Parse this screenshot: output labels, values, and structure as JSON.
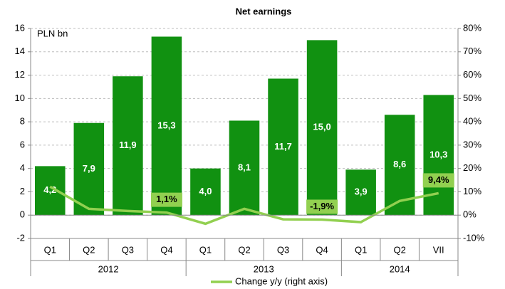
{
  "chart_data": {
    "type": "bar_line",
    "title": "Net earnings",
    "y_label": "PLN bn",
    "categories": [
      "Q1",
      "Q2",
      "Q3",
      "Q4",
      "Q1",
      "Q2",
      "Q3",
      "Q4",
      "Q1",
      "Q2",
      "VII"
    ],
    "groups": [
      {
        "label": "2012",
        "count": 4
      },
      {
        "label": "2013",
        "count": 4
      },
      {
        "label": "2014",
        "count": 3
      }
    ],
    "series": [
      {
        "type": "bar",
        "color": "#119111",
        "values": [
          4.2,
          7.9,
          11.9,
          15.3,
          4.0,
          8.1,
          11.7,
          15.0,
          3.9,
          8.6,
          10.3
        ],
        "value_labels": [
          "4,2",
          "7,9",
          "11,9",
          "15,3",
          "4,0",
          "8,1",
          "11,7",
          "15,0",
          "3,9",
          "8,6",
          "10,3"
        ]
      },
      {
        "type": "line",
        "name": "Change y/y (right axis)",
        "color": "#92d050",
        "axis": "y2",
        "values": [
          12.2,
          2.7,
          1.8,
          1.1,
          -3.7,
          2.7,
          -1.8,
          -1.9,
          -3.0,
          6.1,
          9.4
        ],
        "value_labels": [
          null,
          null,
          null,
          "1,1%",
          null,
          null,
          null,
          "-1,9%",
          null,
          null,
          "9,4%"
        ]
      }
    ],
    "ylim": [
      -2,
      16
    ],
    "yticks": [
      -2,
      0,
      2,
      4,
      6,
      8,
      10,
      12,
      14,
      16
    ],
    "y2lim": [
      -10,
      80
    ],
    "y2ticks": [
      {
        "value": -10,
        "label": "-10%"
      },
      {
        "value": 0,
        "label": "0%"
      },
      {
        "value": 10,
        "label": "10%"
      },
      {
        "value": 20,
        "label": "20%"
      },
      {
        "value": 30,
        "label": "30%"
      },
      {
        "value": 40,
        "label": "40%"
      },
      {
        "value": 50,
        "label": "50%"
      },
      {
        "value": 60,
        "label": "60%"
      },
      {
        "value": 70,
        "label": "70%"
      },
      {
        "value": 80,
        "label": "80%"
      }
    ],
    "grid": true
  }
}
